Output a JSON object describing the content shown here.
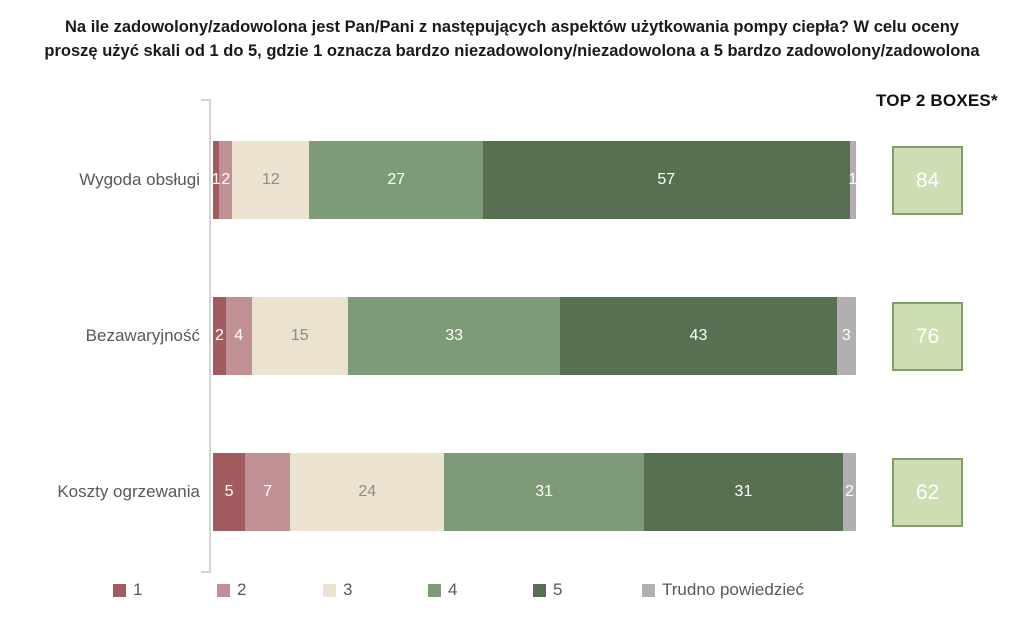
{
  "title": {
    "line1": "Na ile zadowolony/zadowolona jest Pan/Pani z następujących aspektów użytkowania pompy ciepła? W celu oceny",
    "line2": "proszę użyć skali od 1 do 5, gdzie 1 oznacza bardzo niezadowolony/niezadowolona a 5 bardzo zadowolony/zadowolona"
  },
  "top2_header": "TOP 2 BOXES*",
  "chart_data": {
    "type": "bar",
    "variant": "horizontal-stacked-100-percent",
    "title": "Na ile zadowolony/zadowolona jest Pan/Pani z następujących aspektów użytkowania pompy ciepła? W celu oceny proszę użyć skali od 1 do 5, gdzie 1 oznacza bardzo niezadowolony/niezadowolona a 5 bardzo zadowolony/zadowolona",
    "categories": [
      "Wygoda obsługi",
      "Bezawaryjność",
      "Koszty ogrzewania"
    ],
    "series": [
      {
        "name": "1",
        "color": "#A25B5F",
        "label_color": "#FFFFFF",
        "values": [
          1,
          2,
          5
        ]
      },
      {
        "name": "2",
        "color": "#C19094",
        "label_color": "#FFFFFF",
        "values": [
          2,
          4,
          7
        ]
      },
      {
        "name": "3",
        "color": "#EBE2D0",
        "label_color": "#8C8C8C",
        "values": [
          12,
          15,
          24
        ]
      },
      {
        "name": "4",
        "color": "#7C9B76",
        "label_color": "#FFFFFF",
        "values": [
          27,
          33,
          31
        ]
      },
      {
        "name": "5",
        "color": "#567051",
        "label_color": "#FFFFFF",
        "values": [
          57,
          43,
          31
        ]
      },
      {
        "name": "Trudno powiedzieć",
        "color": "#B2AEB1",
        "label_color": "#FFFFFF",
        "values": [
          1,
          3,
          2
        ]
      }
    ],
    "top2_boxes": {
      "header": "TOP 2 BOXES*",
      "values": [
        84,
        76,
        62
      ],
      "fill": "#CDDDB4",
      "border": "#7FA065",
      "value_color": "#FFFFFF"
    },
    "xlim": [
      0,
      100
    ],
    "grid": false,
    "legend_position": "bottom",
    "value_labels": "inside-center",
    "category_label_color": "#595959",
    "axis_color": "#D6D3D3"
  }
}
